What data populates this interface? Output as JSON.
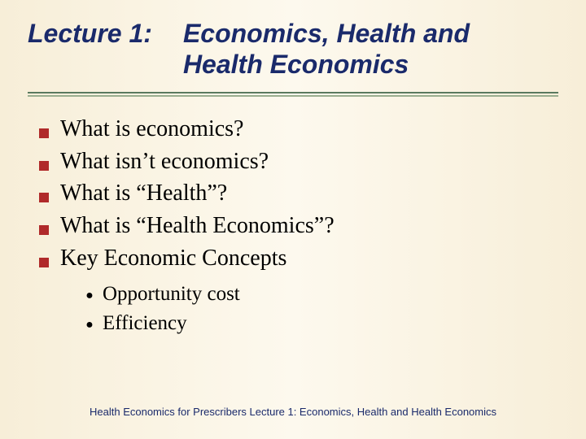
{
  "title": {
    "left": "Lecture 1:",
    "right_line1": "Economics, Health and",
    "right_line2": "Health Economics"
  },
  "colors": {
    "title_color": "#1a2a6b",
    "bullet_color": "#b02a2a",
    "divider_top": "#5a7a5f",
    "divider_bottom": "#9aae8f",
    "footer_color": "#1a2a6b",
    "bg_edge": "#f7eed8",
    "bg_center": "#fdf9ee"
  },
  "typography": {
    "title_font": "Arial",
    "title_size_pt": 24,
    "title_weight": "bold",
    "title_style": "italic",
    "body_font": "Times New Roman",
    "body_size_pt": 21,
    "sub_size_pt": 19,
    "footer_size_pt": 10
  },
  "bullets": [
    "What is economics?",
    "What isn’t economics?",
    "What is “Health”?",
    "What is “Health Economics”?",
    "Key Economic Concepts"
  ],
  "sub_bullets": [
    "Opportunity cost",
    "Efficiency"
  ],
  "footer": "Health Economics for Prescribers Lecture 1: Economics, Health and Health Economics"
}
